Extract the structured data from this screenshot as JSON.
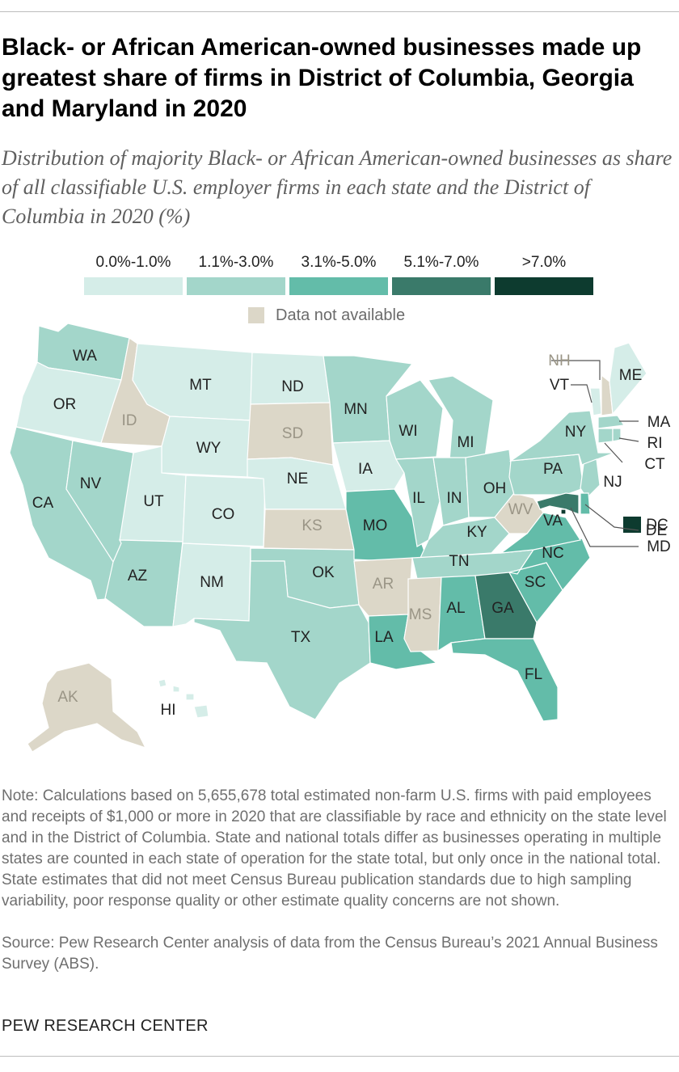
{
  "title": "Black- or African American-owned businesses made up greatest share of firms in District of Columbia, Georgia and Maryland in 2020",
  "subtitle": "Distribution of majority Black- or African American-owned businesses as share of all classifiable U.S. employer firms in each state and the District of Columbia in 2020 (%)",
  "legend": {
    "bins": [
      {
        "label": "0.0%-1.0%",
        "color": "#d5ede8"
      },
      {
        "label": "1.1%-3.0%",
        "color": "#a3d6ca"
      },
      {
        "label": "3.1%-5.0%",
        "color": "#63bca9"
      },
      {
        "label": "5.1%-7.0%",
        "color": "#3a7a6a"
      },
      {
        "label": ">7.0%",
        "color": "#0d3b2f"
      }
    ],
    "not_available": {
      "label": "Data not available",
      "color": "#dcd7c8"
    }
  },
  "map_data": {
    "states": [
      {
        "abbr": "WA",
        "bin": 1
      },
      {
        "abbr": "OR",
        "bin": 0
      },
      {
        "abbr": "CA",
        "bin": 1
      },
      {
        "abbr": "NV",
        "bin": 1
      },
      {
        "abbr": "ID",
        "bin": -1
      },
      {
        "abbr": "MT",
        "bin": 0
      },
      {
        "abbr": "WY",
        "bin": 0
      },
      {
        "abbr": "UT",
        "bin": 0
      },
      {
        "abbr": "AZ",
        "bin": 1
      },
      {
        "abbr": "CO",
        "bin": 0
      },
      {
        "abbr": "NM",
        "bin": 0
      },
      {
        "abbr": "ND",
        "bin": 0
      },
      {
        "abbr": "SD",
        "bin": -1
      },
      {
        "abbr": "NE",
        "bin": 0
      },
      {
        "abbr": "KS",
        "bin": -1
      },
      {
        "abbr": "OK",
        "bin": 1
      },
      {
        "abbr": "TX",
        "bin": 1
      },
      {
        "abbr": "MN",
        "bin": 1
      },
      {
        "abbr": "IA",
        "bin": 0
      },
      {
        "abbr": "MO",
        "bin": 2
      },
      {
        "abbr": "AR",
        "bin": -1
      },
      {
        "abbr": "LA",
        "bin": 2
      },
      {
        "abbr": "WI",
        "bin": 1
      },
      {
        "abbr": "IL",
        "bin": 1
      },
      {
        "abbr": "MI",
        "bin": 1
      },
      {
        "abbr": "IN",
        "bin": 1
      },
      {
        "abbr": "OH",
        "bin": 1
      },
      {
        "abbr": "KY",
        "bin": 1
      },
      {
        "abbr": "TN",
        "bin": 1
      },
      {
        "abbr": "MS",
        "bin": -1
      },
      {
        "abbr": "AL",
        "bin": 2
      },
      {
        "abbr": "GA",
        "bin": 3
      },
      {
        "abbr": "FL",
        "bin": 2
      },
      {
        "abbr": "SC",
        "bin": 2
      },
      {
        "abbr": "NC",
        "bin": 2
      },
      {
        "abbr": "VA",
        "bin": 2
      },
      {
        "abbr": "WV",
        "bin": -1
      },
      {
        "abbr": "PA",
        "bin": 1
      },
      {
        "abbr": "NY",
        "bin": 1
      },
      {
        "abbr": "VT",
        "bin": 0
      },
      {
        "abbr": "NH",
        "bin": -1
      },
      {
        "abbr": "ME",
        "bin": 0
      },
      {
        "abbr": "MA",
        "bin": 1
      },
      {
        "abbr": "RI",
        "bin": 1
      },
      {
        "abbr": "CT",
        "bin": 1
      },
      {
        "abbr": "NJ",
        "bin": 1
      },
      {
        "abbr": "DE",
        "bin": 2
      },
      {
        "abbr": "MD",
        "bin": 3
      },
      {
        "abbr": "DC",
        "bin": 4
      },
      {
        "abbr": "AK",
        "bin": -1
      },
      {
        "abbr": "HI",
        "bin": 0
      }
    ]
  },
  "note": "Note: Calculations based on 5,655,678 total estimated non-farm U.S. firms with paid employees and receipts of $1,000 or more in 2020 that are classifiable by race and ethnicity on the state level and in the District of Columbia. State and national totals differ as businesses operating in multiple states are counted in each state of operation for the state total, but only once in the national total. State estimates that did not meet Census Bureau publication standards due to high sampling variability, poor response quality or other estimate quality concerns are not shown.",
  "source": "Source: Pew Research Center analysis of data from the Census Bureau’s 2021 Annual Business Survey (ABS).",
  "brand": "PEW RESEARCH CENTER"
}
